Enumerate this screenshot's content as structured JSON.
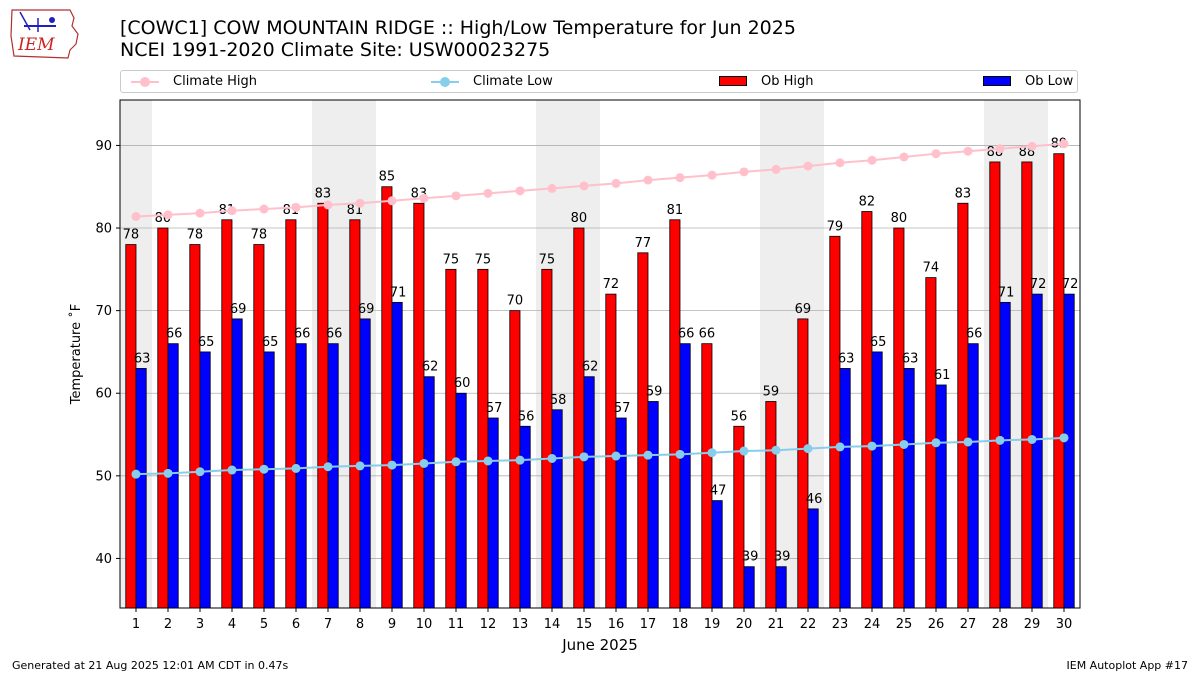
{
  "header": {
    "logo_text": "IEM",
    "title_line1": "[COWC1] COW MOUNTAIN RIDGE :: High/Low Temperature for Jun 2025",
    "title_line2": "NCEI 1991-2020 Climate Site: USW00023275"
  },
  "legend": {
    "items": [
      {
        "label": "Climate High",
        "color": "#ffc0cb",
        "kind": "line"
      },
      {
        "label": "Climate Low",
        "color": "#87ceeb",
        "kind": "line"
      },
      {
        "label": "Ob High",
        "color": "#ff0000",
        "kind": "bar"
      },
      {
        "label": "Ob Low",
        "color": "#0000ff",
        "kind": "bar"
      }
    ]
  },
  "footer": {
    "left": "Generated at 21 Aug 2025 12:01 AM CDT in 0.47s",
    "right": "IEM Autoplot App #17"
  },
  "chart_data": {
    "type": "bar",
    "xlabel": "June 2025",
    "ylabel": "Temperature $^\\circ$F",
    "ylabel_display": "Temperature ˚F",
    "ylim": [
      34,
      95.5
    ],
    "yticks": [
      40,
      50,
      60,
      70,
      80,
      90
    ],
    "grid": true,
    "legend_position": "top",
    "weekend_shading_color": "#eeeeee",
    "weekend_days": [
      1,
      7,
      8,
      14,
      15,
      21,
      22,
      28,
      29
    ],
    "categories": [
      1,
      2,
      3,
      4,
      5,
      6,
      7,
      8,
      9,
      10,
      11,
      12,
      13,
      14,
      15,
      16,
      17,
      18,
      19,
      20,
      21,
      22,
      23,
      24,
      25,
      26,
      27,
      28,
      29,
      30
    ],
    "series": [
      {
        "name": "Ob High",
        "color": "#ff0000",
        "values": [
          78,
          80,
          78,
          81,
          78,
          81,
          83,
          81,
          85,
          83,
          75,
          75,
          70,
          75,
          80,
          72,
          77,
          81,
          66,
          56,
          59,
          69,
          79,
          82,
          80,
          74,
          83,
          88,
          88,
          89
        ]
      },
      {
        "name": "Ob Low",
        "color": "#0000ff",
        "values": [
          63,
          66,
          65,
          69,
          65,
          66,
          66,
          69,
          71,
          62,
          60,
          57,
          56,
          58,
          62,
          57,
          59,
          66,
          47,
          39,
          39,
          46,
          63,
          65,
          63,
          61,
          66,
          71,
          72,
          72
        ]
      },
      {
        "name": "Climate High",
        "color": "#ffc0cb",
        "values": [
          81.4,
          81.6,
          81.8,
          82.1,
          82.3,
          82.5,
          82.8,
          83.0,
          83.3,
          83.6,
          83.9,
          84.2,
          84.5,
          84.8,
          85.1,
          85.4,
          85.8,
          86.1,
          86.4,
          86.8,
          87.1,
          87.5,
          87.9,
          88.2,
          88.6,
          89.0,
          89.3,
          89.6,
          89.9,
          90.2
        ]
      },
      {
        "name": "Climate Low",
        "color": "#87ceeb",
        "values": [
          50.2,
          50.3,
          50.5,
          50.7,
          50.8,
          50.9,
          51.1,
          51.2,
          51.3,
          51.5,
          51.7,
          51.8,
          51.9,
          52.1,
          52.3,
          52.4,
          52.5,
          52.6,
          52.8,
          53.0,
          53.1,
          53.3,
          53.5,
          53.6,
          53.8,
          54.0,
          54.1,
          54.3,
          54.4,
          54.6
        ]
      }
    ]
  }
}
